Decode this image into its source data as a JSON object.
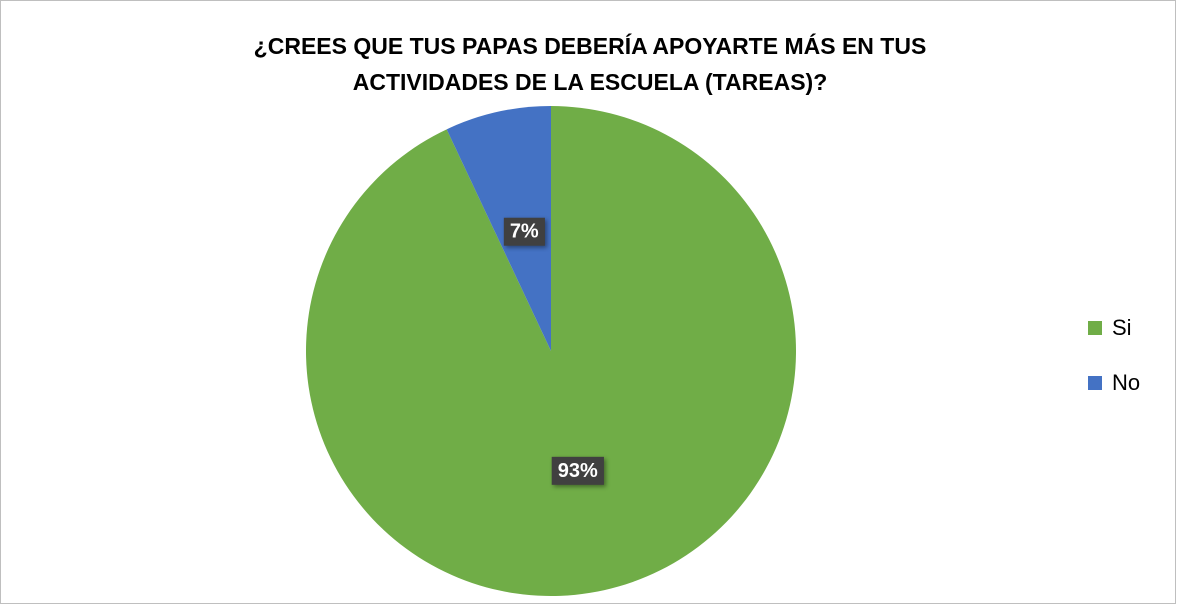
{
  "chart_data": {
    "type": "pie",
    "title": [
      "¿CREES QUE TUS PAPAS DEBERÍA APOYARTE MÁS EN TUS",
      "ACTIVIDADES DE LA ESCUELA (TAREAS)?"
    ],
    "categories": [
      "Si",
      "No"
    ],
    "values": [
      93,
      7
    ],
    "value_labels": [
      "93%",
      "7%"
    ],
    "colors": [
      "#70ad47",
      "#4472c4"
    ],
    "legend": "right"
  }
}
